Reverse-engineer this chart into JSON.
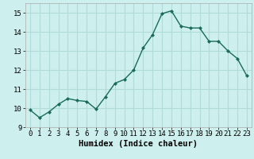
{
  "x": [
    0,
    1,
    2,
    3,
    4,
    5,
    6,
    7,
    8,
    9,
    10,
    11,
    12,
    13,
    14,
    15,
    16,
    17,
    18,
    19,
    20,
    21,
    22,
    23
  ],
  "y": [
    9.9,
    9.5,
    9.8,
    10.2,
    10.5,
    10.4,
    10.35,
    9.95,
    10.6,
    11.3,
    11.5,
    12.0,
    13.15,
    13.85,
    14.95,
    15.1,
    14.3,
    14.2,
    14.2,
    13.5,
    13.5,
    13.0,
    12.6,
    11.7
  ],
  "line_color": "#1a6b5a",
  "marker": "D",
  "marker_size": 2.0,
  "bg_color": "#cdf0ee",
  "grid_color": "#b0dbd8",
  "xlabel": "Humidex (Indice chaleur)",
  "xlim": [
    -0.5,
    23.5
  ],
  "ylim": [
    9,
    15.5
  ],
  "yticks": [
    9,
    10,
    11,
    12,
    13,
    14,
    15
  ],
  "xticks": [
    0,
    1,
    2,
    3,
    4,
    5,
    6,
    7,
    8,
    9,
    10,
    11,
    12,
    13,
    14,
    15,
    16,
    17,
    18,
    19,
    20,
    21,
    22,
    23
  ],
  "xlabel_fontsize": 7.5,
  "tick_fontsize": 6.5,
  "linewidth": 1.0
}
